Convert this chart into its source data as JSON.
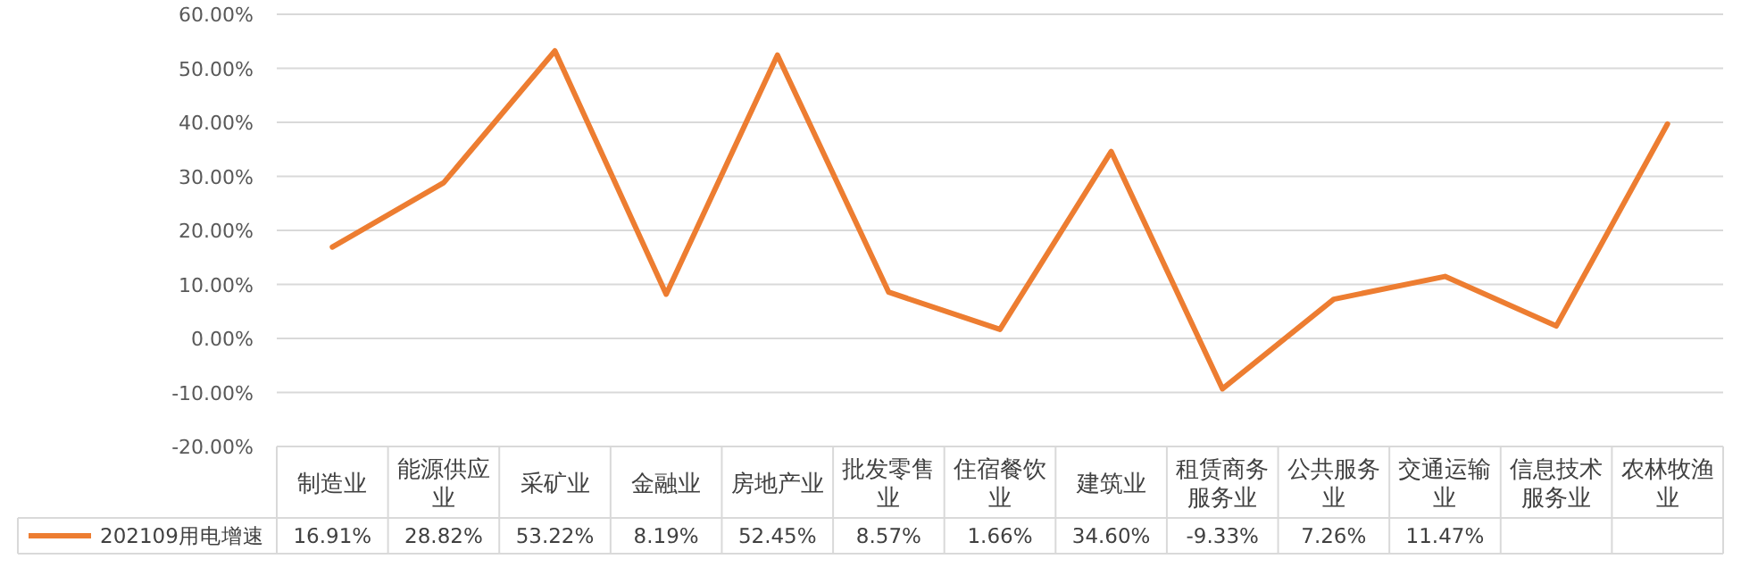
{
  "chart_data": {
    "type": "line",
    "categories": [
      "制造业",
      "能源供应业",
      "采矿业",
      "金融业",
      "房地产业",
      "批发零售业",
      "住宿餐饮业",
      "建筑业",
      "租赁商务服务业",
      "公共服务业",
      "交通运输业",
      "信息技术服务业",
      "农林牧渔业"
    ],
    "series": [
      {
        "name": "202109用电增速",
        "color": "#ed7d31",
        "values": [
          16.91,
          28.82,
          53.22,
          8.19,
          52.45,
          8.57,
          1.66,
          34.6,
          -9.33,
          7.26,
          11.47,
          2.3,
          39.7
        ],
        "value_labels": [
          "16.91%",
          "28.82%",
          "53.22%",
          "8.19%",
          "52.45%",
          "8.57%",
          "1.66%",
          "34.60%",
          "-9.33%",
          "7.26%",
          "11.47%",
          null,
          null
        ]
      }
    ],
    "ylim": [
      -20,
      60
    ],
    "yticks": [
      {
        "value": -20,
        "label": "-20.00%"
      },
      {
        "value": -10,
        "label": "-10.00%"
      },
      {
        "value": 0,
        "label": "0.00%"
      },
      {
        "value": 10,
        "label": "10.00%"
      },
      {
        "value": 20,
        "label": "20.00%"
      },
      {
        "value": 30,
        "label": "30.00%"
      },
      {
        "value": 40,
        "label": "40.00%"
      },
      {
        "value": 50,
        "label": "50.00%"
      },
      {
        "value": 60,
        "label": "60.00%"
      }
    ],
    "grid": "y",
    "legend": "bottom left",
    "marker": "none",
    "line_style": "solid"
  }
}
